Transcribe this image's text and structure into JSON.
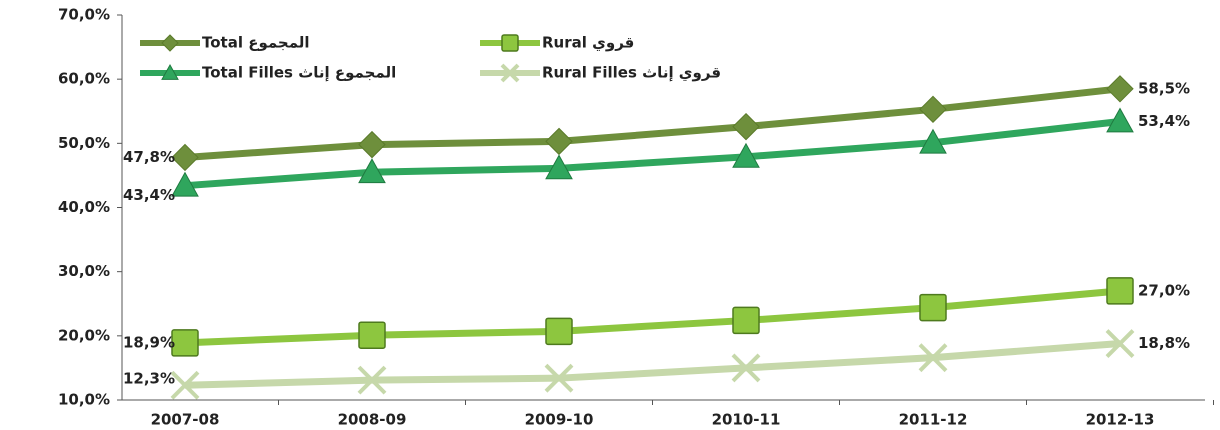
{
  "chart_data": {
    "type": "line",
    "categories": [
      "2007-08",
      "2008-09",
      "2009-10",
      "2010-11",
      "2011-12",
      "2012-13"
    ],
    "series": [
      {
        "name": "Total المجموع",
        "color": "#6e8f3c",
        "marker": "diamond",
        "values": [
          47.8,
          49.8,
          50.3,
          52.6,
          55.3,
          58.5
        ],
        "value_labels": [
          "47,8%",
          null,
          null,
          null,
          null,
          "58,5%"
        ]
      },
      {
        "name": "Rural قروي",
        "color": "#8dc63f",
        "marker": "square",
        "values": [
          18.9,
          20.1,
          20.7,
          22.4,
          24.4,
          27.0
        ],
        "value_labels": [
          "18,9%",
          null,
          null,
          null,
          null,
          "27,0%"
        ]
      },
      {
        "name": "Total Filles المجموع إناث",
        "color": "#2fa65d",
        "marker": "triangle",
        "values": [
          43.4,
          45.5,
          46.1,
          47.9,
          50.1,
          53.4
        ],
        "value_labels": [
          "43,4%",
          null,
          null,
          null,
          null,
          "53,4%"
        ]
      },
      {
        "name": "Rural Filles قروي إناث",
        "color": "#c6d8aa",
        "marker": "x",
        "values": [
          12.3,
          13.1,
          13.4,
          15.0,
          16.6,
          18.8
        ],
        "value_labels": [
          "12,3%",
          null,
          null,
          null,
          null,
          "18,8%"
        ]
      }
    ],
    "ylim": [
      10,
      70
    ],
    "yticks": [
      {
        "value": 10,
        "label": "10,0%"
      },
      {
        "value": 20,
        "label": "20,0%"
      },
      {
        "value": 30,
        "label": "30,0%"
      },
      {
        "value": 40,
        "label": "40,0%"
      },
      {
        "value": 50,
        "label": "50,0%"
      },
      {
        "value": 60,
        "label": "60,0%"
      },
      {
        "value": 70,
        "label": "70,0%"
      }
    ],
    "legend": "top-left",
    "grid": false
  }
}
